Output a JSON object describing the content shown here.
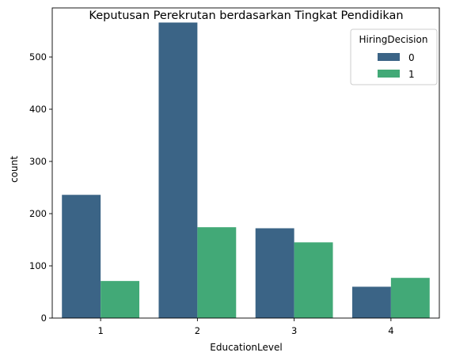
{
  "chart_data": {
    "type": "bar",
    "title": "Keputusan Perekrutan berdasarkan Tingkat Pendidikan",
    "xlabel": "EducationLevel",
    "ylabel": "count",
    "categories": [
      "1",
      "2",
      "3",
      "4"
    ],
    "series": [
      {
        "name": "0",
        "color": "#3b6486",
        "values": [
          236,
          566,
          172,
          60
        ]
      },
      {
        "name": "1",
        "color": "#42a977",
        "values": [
          71,
          174,
          145,
          77
        ]
      }
    ],
    "ylim": [
      0,
      594
    ],
    "yticks": [
      0,
      100,
      200,
      300,
      400,
      500
    ],
    "grid": false,
    "legend": {
      "title": "HiringDecision",
      "placement": "upper-right"
    }
  }
}
